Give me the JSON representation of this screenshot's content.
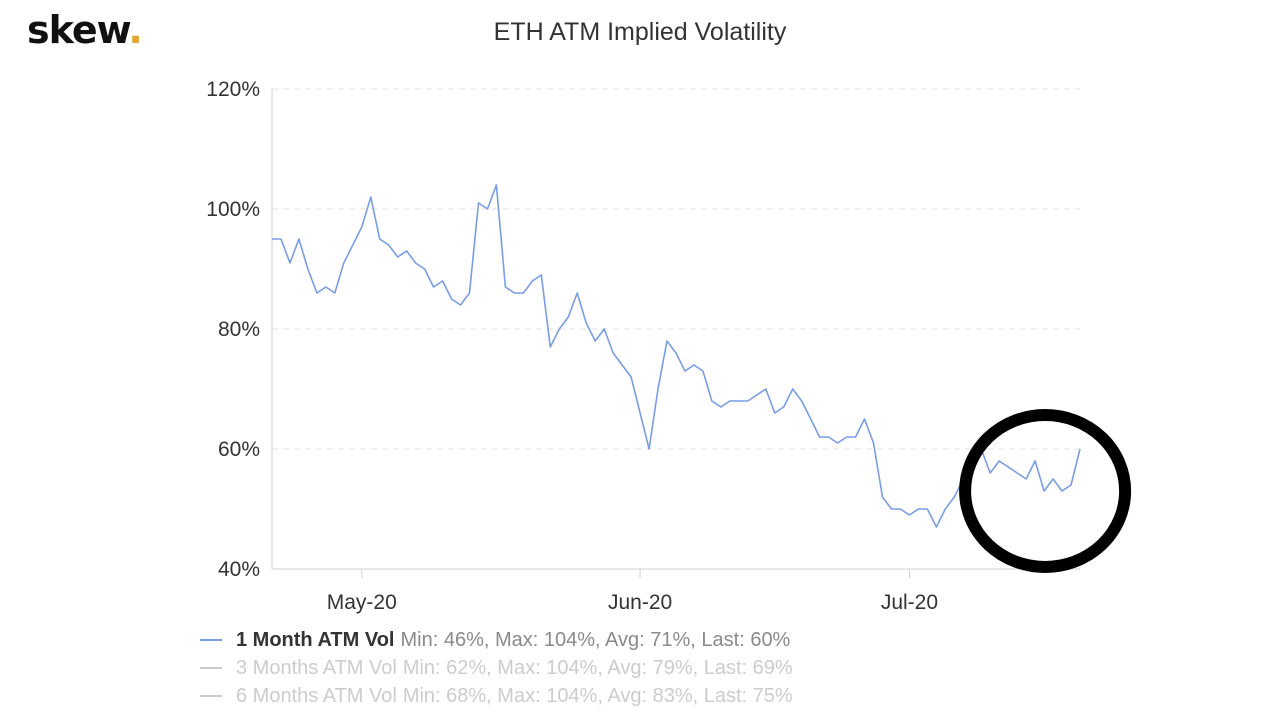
{
  "brand": {
    "name": "skew",
    "dot": "."
  },
  "chart_data": {
    "type": "line",
    "title": "ETH ATM Implied Volatility",
    "xlabel": "",
    "ylabel": "",
    "x_range": [
      "2020-04-21",
      "2020-07-20"
    ],
    "ylim": [
      40,
      120
    ],
    "y_ticks": [
      40,
      60,
      80,
      100,
      120
    ],
    "y_tick_labels": [
      "40%",
      "60%",
      "80%",
      "100%",
      "120%"
    ],
    "x_ticks": [
      {
        "date": "2020-05-01",
        "label": "May-20"
      },
      {
        "date": "2020-06-01",
        "label": "Jun-20"
      },
      {
        "date": "2020-07-01",
        "label": "Jul-20"
      }
    ],
    "grid": "horizontal-dashed",
    "legend_position": "bottom-left",
    "series": [
      {
        "name": "1 Month ATM Vol",
        "stats": "Min: 46%, Max: 104%, Avg: 71%, Last: 60%",
        "color": "#7a9de0",
        "visible": true,
        "points": [
          [
            "2020-04-21",
            95
          ],
          [
            "2020-04-22",
            95
          ],
          [
            "2020-04-23",
            91
          ],
          [
            "2020-04-24",
            95
          ],
          [
            "2020-04-25",
            90
          ],
          [
            "2020-04-26",
            86
          ],
          [
            "2020-04-27",
            87
          ],
          [
            "2020-04-28",
            86
          ],
          [
            "2020-04-29",
            91
          ],
          [
            "2020-04-30",
            94
          ],
          [
            "2020-05-01",
            97
          ],
          [
            "2020-05-02",
            102
          ],
          [
            "2020-05-03",
            95
          ],
          [
            "2020-05-04",
            94
          ],
          [
            "2020-05-05",
            92
          ],
          [
            "2020-05-06",
            93
          ],
          [
            "2020-05-07",
            91
          ],
          [
            "2020-05-08",
            90
          ],
          [
            "2020-05-09",
            87
          ],
          [
            "2020-05-10",
            88
          ],
          [
            "2020-05-11",
            85
          ],
          [
            "2020-05-12",
            84
          ],
          [
            "2020-05-13",
            86
          ],
          [
            "2020-05-14",
            101
          ],
          [
            "2020-05-15",
            100
          ],
          [
            "2020-05-16",
            104
          ],
          [
            "2020-05-17",
            87
          ],
          [
            "2020-05-18",
            86
          ],
          [
            "2020-05-19",
            86
          ],
          [
            "2020-05-20",
            88
          ],
          [
            "2020-05-21",
            89
          ],
          [
            "2020-05-22",
            77
          ],
          [
            "2020-05-23",
            80
          ],
          [
            "2020-05-24",
            82
          ],
          [
            "2020-05-25",
            86
          ],
          [
            "2020-05-26",
            81
          ],
          [
            "2020-05-27",
            78
          ],
          [
            "2020-05-28",
            80
          ],
          [
            "2020-05-29",
            76
          ],
          [
            "2020-05-30",
            74
          ],
          [
            "2020-05-31",
            72
          ],
          [
            "2020-06-01",
            66
          ],
          [
            "2020-06-02",
            60
          ],
          [
            "2020-06-03",
            70
          ],
          [
            "2020-06-04",
            78
          ],
          [
            "2020-06-05",
            76
          ],
          [
            "2020-06-06",
            73
          ],
          [
            "2020-06-07",
            74
          ],
          [
            "2020-06-08",
            73
          ],
          [
            "2020-06-09",
            68
          ],
          [
            "2020-06-10",
            67
          ],
          [
            "2020-06-11",
            68
          ],
          [
            "2020-06-12",
            68
          ],
          [
            "2020-06-13",
            68
          ],
          [
            "2020-06-14",
            69
          ],
          [
            "2020-06-15",
            70
          ],
          [
            "2020-06-16",
            66
          ],
          [
            "2020-06-17",
            67
          ],
          [
            "2020-06-18",
            70
          ],
          [
            "2020-06-19",
            68
          ],
          [
            "2020-06-20",
            65
          ],
          [
            "2020-06-21",
            62
          ],
          [
            "2020-06-22",
            62
          ],
          [
            "2020-06-23",
            61
          ],
          [
            "2020-06-24",
            62
          ],
          [
            "2020-06-25",
            62
          ],
          [
            "2020-06-26",
            65
          ],
          [
            "2020-06-27",
            61
          ],
          [
            "2020-06-28",
            52
          ],
          [
            "2020-06-29",
            50
          ],
          [
            "2020-06-30",
            50
          ],
          [
            "2020-07-01",
            49
          ],
          [
            "2020-07-02",
            50
          ],
          [
            "2020-07-03",
            50
          ],
          [
            "2020-07-04",
            47
          ],
          [
            "2020-07-05",
            50
          ],
          [
            "2020-07-06",
            52
          ],
          [
            "2020-07-07",
            55
          ],
          [
            "2020-07-08",
            58
          ],
          [
            "2020-07-09",
            60
          ],
          [
            "2020-07-10",
            56
          ],
          [
            "2020-07-11",
            58
          ],
          [
            "2020-07-12",
            57
          ],
          [
            "2020-07-13",
            56
          ],
          [
            "2020-07-14",
            55
          ],
          [
            "2020-07-15",
            58
          ],
          [
            "2020-07-16",
            53
          ],
          [
            "2020-07-17",
            55
          ],
          [
            "2020-07-18",
            53
          ],
          [
            "2020-07-19",
            54
          ],
          [
            "2020-07-20",
            60
          ]
        ]
      },
      {
        "name": "3 Months ATM Vol",
        "stats": "Min: 62%, Max: 104%, Avg: 79%, Last: 69%",
        "color": "#cccccc",
        "visible": false
      },
      {
        "name": "6 Months ATM Vol",
        "stats": "Min: 68%, Max: 104%, Avg: 83%, Last: 75%",
        "color": "#cccccc",
        "visible": false
      }
    ]
  },
  "annotation": {
    "shape": "circle",
    "color": "#000000",
    "highlights_range": [
      "2020-07-10",
      "2020-07-20"
    ]
  }
}
